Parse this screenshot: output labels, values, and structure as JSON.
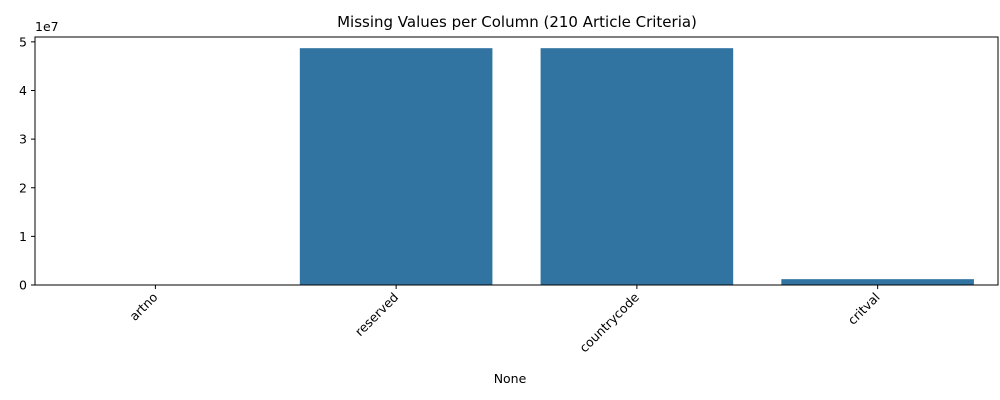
{
  "chart_data": {
    "type": "bar",
    "title": "Missing Values per Column (210 Article Criteria)",
    "xlabel": "None",
    "ylabel": "",
    "categories": [
      "artno",
      "reserved",
      "countrycode",
      "critval"
    ],
    "values": [
      0,
      48700000,
      48700000,
      1200000
    ],
    "ylim": [
      0,
      51000000
    ],
    "y_ticks": [
      0,
      10000000,
      20000000,
      30000000,
      40000000,
      50000000
    ],
    "y_tick_labels": [
      "0",
      "1",
      "2",
      "3",
      "4",
      "5"
    ],
    "y_offset_label": "1e7",
    "x_tick_rotation_deg": 45,
    "grid": false,
    "legend": "none",
    "bar_color": "#3274a1"
  }
}
